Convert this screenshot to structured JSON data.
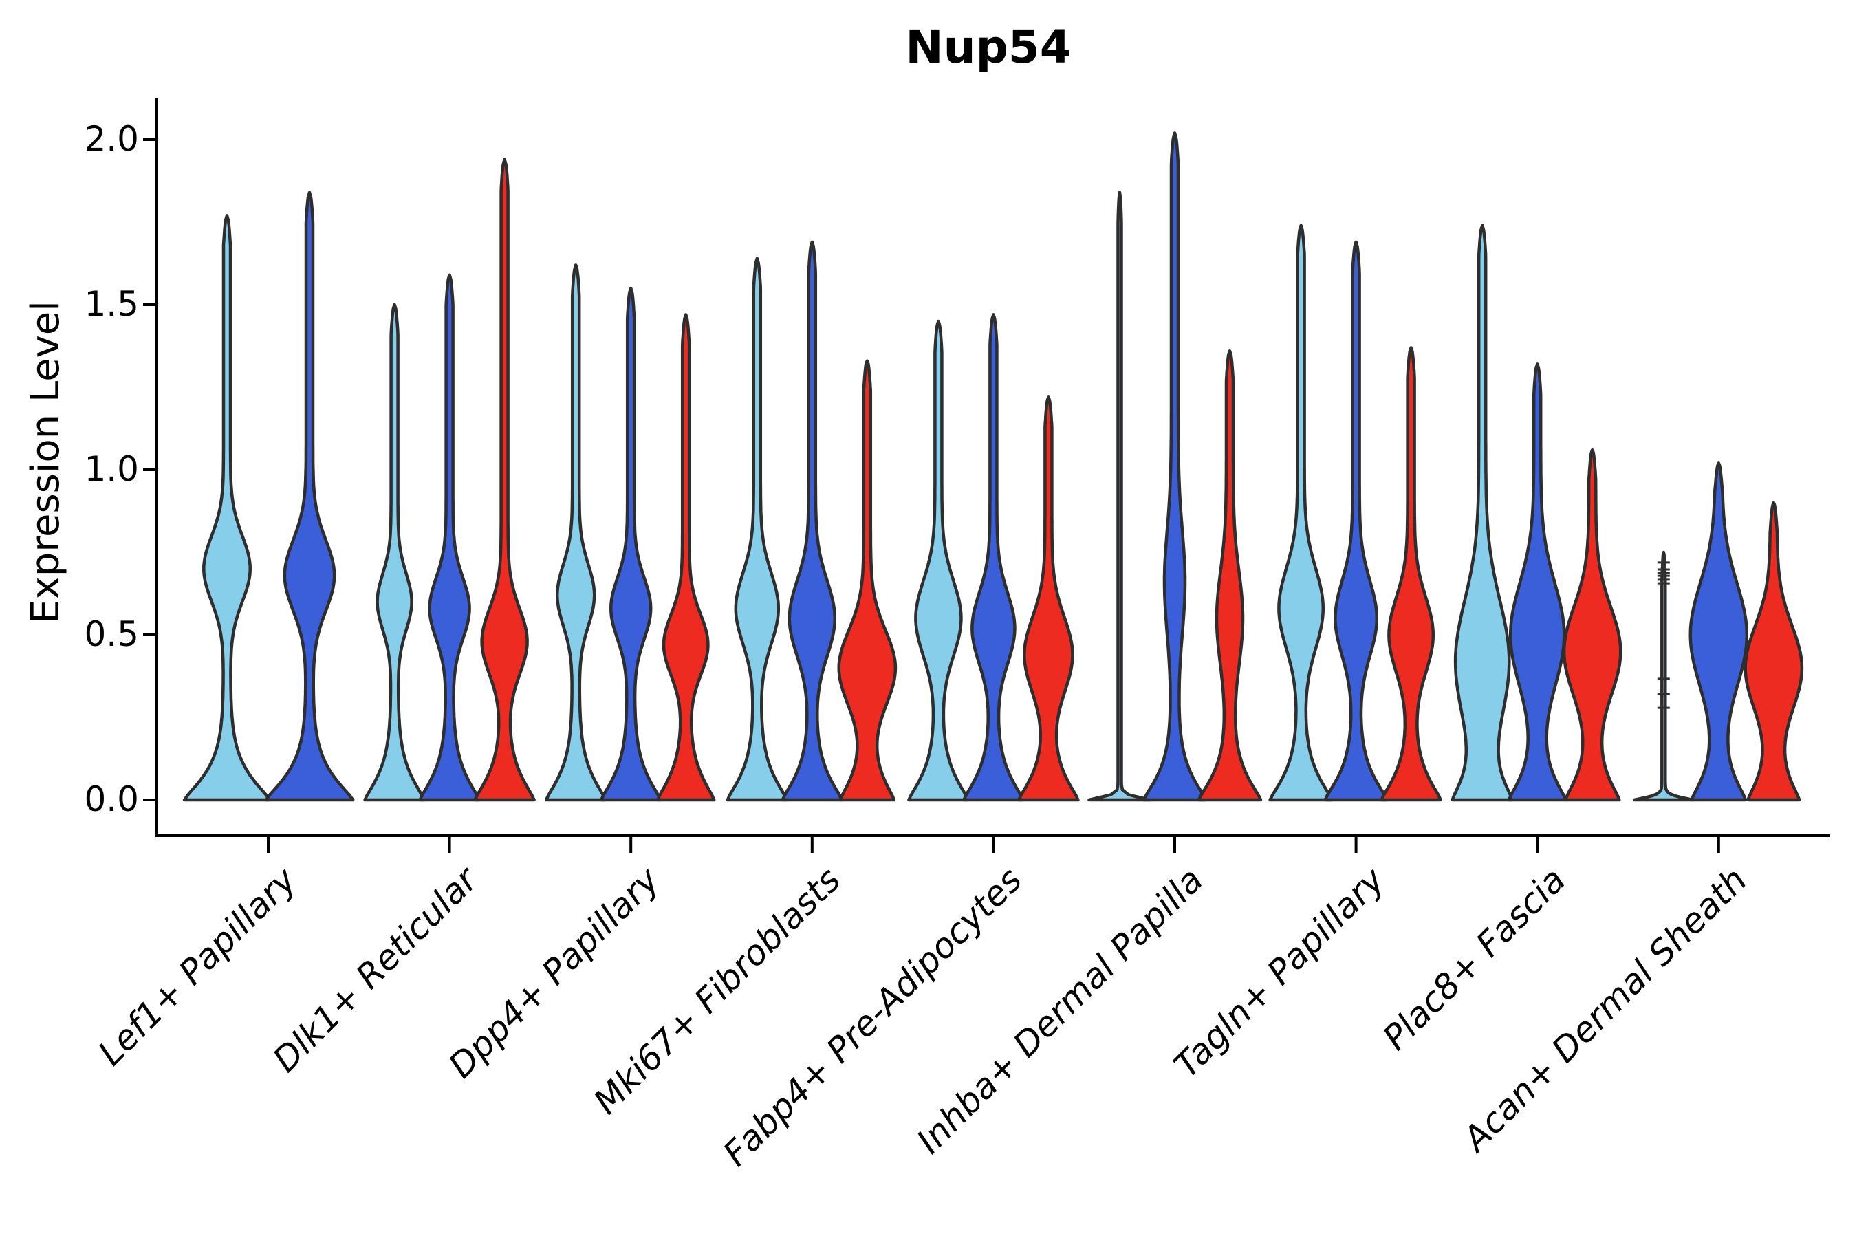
{
  "title": "Nup54",
  "ylabel": "Expression Level",
  "colors": {
    "skyblue": "#87CEEB",
    "blue": "#3A5FD8",
    "red": "#EE2B21",
    "outline": "#2E2E2E",
    "axis": "#000000",
    "text": "#000000",
    "background": "#ffffff"
  },
  "chart_data": {
    "type": "violin",
    "title": "Nup54",
    "xlabel": "",
    "ylabel": "Expression Level",
    "ylim": [
      -0.11,
      2.13
    ],
    "yticks": [
      0.0,
      0.5,
      1.0,
      1.5,
      2.0
    ],
    "ytick_labels": [
      "0.0",
      "0.5",
      "1.0",
      "1.5",
      "2.0"
    ],
    "grid": false,
    "legend_position": "none",
    "series_colors": {
      "skyblue": "#87CEEB",
      "blue": "#3A5FD8",
      "red": "#EE2B21"
    },
    "categories": [
      "Lef1+ Papillary",
      "Dlk1+ Reticular",
      "Dpp4+ Papillary",
      "Mki67+ Fibroblasts",
      "Fabp4+ Pre-Adipocytes",
      "Inhba+ Dermal Papilla",
      "Tagln+ Papillary",
      "Plac8+ Fascia",
      "Acan+ Dermal Sheath"
    ],
    "groups": [
      {
        "label": "Lef1+ Papillary",
        "violins": [
          {
            "color": "skyblue",
            "max": 1.77,
            "bulge_pos": 0.7,
            "bulge_width": 0.48,
            "bulge_sigma": 0.14,
            "base_width": 0.95
          },
          {
            "color": "blue",
            "max": 1.84,
            "bulge_pos": 0.68,
            "bulge_width": 0.52,
            "bulge_sigma": 0.15,
            "base_width": 0.97
          }
        ]
      },
      {
        "label": "Dlk1+ Reticular",
        "violins": [
          {
            "color": "skyblue",
            "max": 1.5,
            "bulge_pos": 0.6,
            "bulge_width": 0.5,
            "bulge_sigma": 0.12,
            "base_width": 0.95
          },
          {
            "color": "blue",
            "max": 1.59,
            "bulge_pos": 0.58,
            "bulge_width": 0.6,
            "bulge_sigma": 0.13,
            "base_width": 0.95
          },
          {
            "color": "red",
            "max": 1.94,
            "bulge_pos": 0.48,
            "bulge_width": 0.7,
            "bulge_sigma": 0.14,
            "base_width": 0.95
          }
        ]
      },
      {
        "label": "Dpp4+ Papillary",
        "violins": [
          {
            "color": "skyblue",
            "max": 1.62,
            "bulge_pos": 0.62,
            "bulge_width": 0.55,
            "bulge_sigma": 0.13,
            "base_width": 0.95
          },
          {
            "color": "blue",
            "max": 1.55,
            "bulge_pos": 0.58,
            "bulge_width": 0.6,
            "bulge_sigma": 0.13,
            "base_width": 0.95
          },
          {
            "color": "red",
            "max": 1.47,
            "bulge_pos": 0.47,
            "bulge_width": 0.68,
            "bulge_sigma": 0.13,
            "base_width": 0.9
          }
        ]
      },
      {
        "label": "Mki67+ Fibroblasts",
        "violins": [
          {
            "color": "skyblue",
            "max": 1.64,
            "bulge_pos": 0.58,
            "bulge_width": 0.65,
            "bulge_sigma": 0.15,
            "base_width": 0.95
          },
          {
            "color": "blue",
            "max": 1.69,
            "bulge_pos": 0.55,
            "bulge_width": 0.7,
            "bulge_sigma": 0.16,
            "base_width": 0.95
          },
          {
            "color": "red",
            "max": 1.33,
            "bulge_pos": 0.4,
            "bulge_width": 0.9,
            "bulge_sigma": 0.16,
            "base_width": 0.85
          }
        ]
      },
      {
        "label": "Fabp4+ Pre-Adipocytes",
        "violins": [
          {
            "color": "skyblue",
            "max": 1.45,
            "bulge_pos": 0.55,
            "bulge_width": 0.7,
            "bulge_sigma": 0.16,
            "base_width": 0.95
          },
          {
            "color": "blue",
            "max": 1.47,
            "bulge_pos": 0.52,
            "bulge_width": 0.65,
            "bulge_sigma": 0.15,
            "base_width": 0.95
          },
          {
            "color": "red",
            "max": 1.22,
            "bulge_pos": 0.44,
            "bulge_width": 0.75,
            "bulge_sigma": 0.16,
            "base_width": 0.95
          }
        ]
      },
      {
        "label": "Inhba+ Dermal Papilla",
        "violins": [
          {
            "color": "skyblue",
            "max": 1.84,
            "shape": "line",
            "base_width": 1.05
          },
          {
            "color": "blue",
            "max": 2.02,
            "bulge_pos": 0.66,
            "bulge_width": 0.25,
            "bulge_sigma": 0.22,
            "base_width": 1.0
          },
          {
            "color": "red",
            "max": 1.36,
            "bulge_pos": 0.55,
            "bulge_width": 0.35,
            "bulge_sigma": 0.2,
            "base_width": 1.0
          }
        ]
      },
      {
        "label": "Tagln+ Papillary",
        "violins": [
          {
            "color": "skyblue",
            "max": 1.74,
            "bulge_pos": 0.58,
            "bulge_width": 0.68,
            "bulge_sigma": 0.17,
            "base_width": 1.0
          },
          {
            "color": "blue",
            "max": 1.69,
            "bulge_pos": 0.55,
            "bulge_width": 0.63,
            "bulge_sigma": 0.16,
            "base_width": 1.0
          },
          {
            "color": "red",
            "max": 1.37,
            "bulge_pos": 0.5,
            "bulge_width": 0.68,
            "bulge_sigma": 0.16,
            "base_width": 0.95
          }
        ]
      },
      {
        "label": "Plac8+ Fascia",
        "violins": [
          {
            "color": "skyblue",
            "max": 1.74,
            "bulge_pos": 0.42,
            "bulge_width": 0.85,
            "bulge_sigma": 0.26,
            "base_width": 0.9
          },
          {
            "color": "blue",
            "max": 1.32,
            "bulge_pos": 0.5,
            "bulge_width": 0.85,
            "bulge_sigma": 0.22,
            "base_width": 0.9
          },
          {
            "color": "red",
            "max": 1.06,
            "bulge_pos": 0.45,
            "bulge_width": 0.9,
            "bulge_sigma": 0.19,
            "base_width": 0.85
          }
        ]
      },
      {
        "label": "Acan+ Dermal Sheath",
        "violins": [
          {
            "color": "skyblue",
            "max": 0.75,
            "shape": "line",
            "base_width": 1.0,
            "marks": [
              0.719,
              0.698,
              0.688,
              0.679,
              0.667,
              0.656,
              0.367,
              0.322,
              0.279
            ]
          },
          {
            "color": "blue",
            "max": 1.02,
            "bulge_pos": 0.5,
            "bulge_width": 0.9,
            "bulge_sigma": 0.22,
            "base_width": 0.85
          },
          {
            "color": "red",
            "max": 0.9,
            "bulge_pos": 0.4,
            "bulge_width": 0.9,
            "bulge_sigma": 0.18,
            "base_width": 0.8
          }
        ]
      }
    ]
  }
}
